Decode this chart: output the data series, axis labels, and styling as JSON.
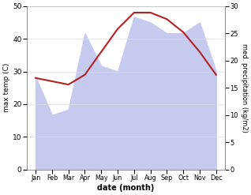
{
  "months": [
    "Jan",
    "Feb",
    "Mar",
    "Apr",
    "May",
    "Jun",
    "Jul",
    "Aug",
    "Sep",
    "Oct",
    "Nov",
    "Dec"
  ],
  "max_temp": [
    28,
    27,
    26,
    29,
    36,
    43,
    48,
    48,
    46,
    42,
    36,
    29
  ],
  "precipitation": [
    17,
    10,
    11,
    25,
    19,
    18,
    28,
    27,
    25,
    25,
    27,
    18
  ],
  "temp_color": "#b22222",
  "precip_fill_color": "#c5caee",
  "temp_ylim": [
    0,
    50
  ],
  "precip_ylim": [
    0,
    30
  ],
  "temp_yticks": [
    0,
    10,
    20,
    30,
    40,
    50
  ],
  "precip_yticks": [
    0,
    5,
    10,
    15,
    20,
    25,
    30
  ],
  "xlabel": "date (month)",
  "ylabel_left": "max temp (C)",
  "ylabel_right": "med. precipitation (kg/m2)",
  "fig_width": 3.18,
  "fig_height": 2.47,
  "dpi": 100
}
